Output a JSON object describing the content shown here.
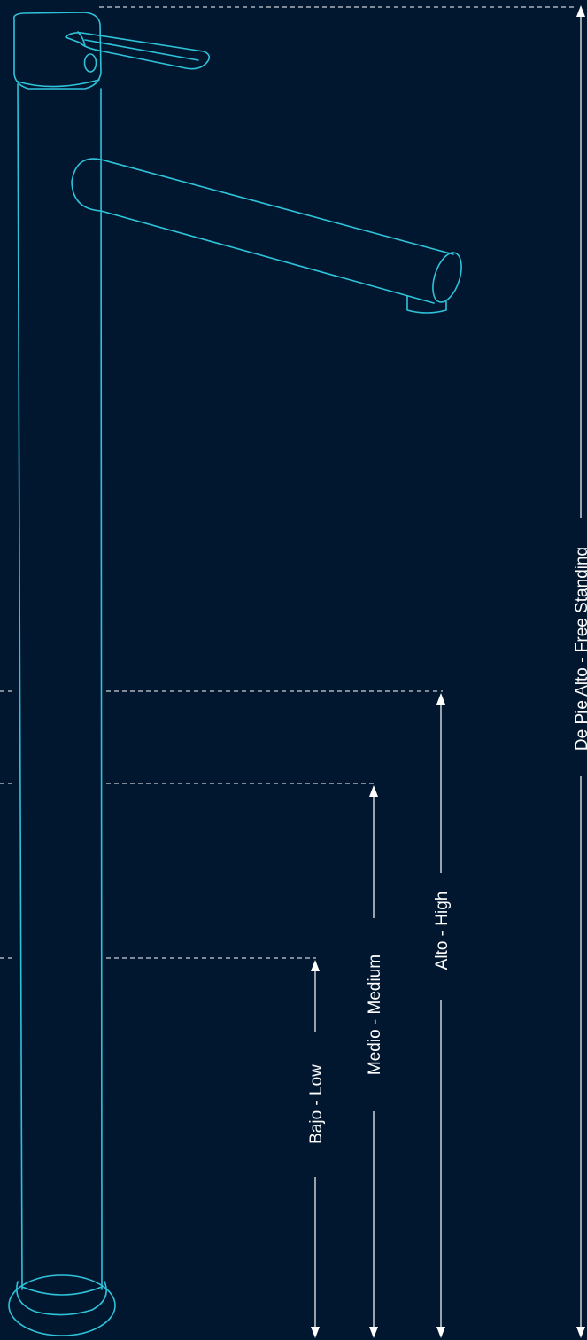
{
  "colors": {
    "background": "#00172F",
    "faucet_outline": "#2FC3DA",
    "dimension_lines": "#FFFFFF"
  },
  "dimensions": {
    "low_label": "Bajo - Low",
    "medium_label": "Medio - Medium",
    "high_label": "Alto - High",
    "free_standing_label": "De Pie Alto - Free Standing"
  }
}
